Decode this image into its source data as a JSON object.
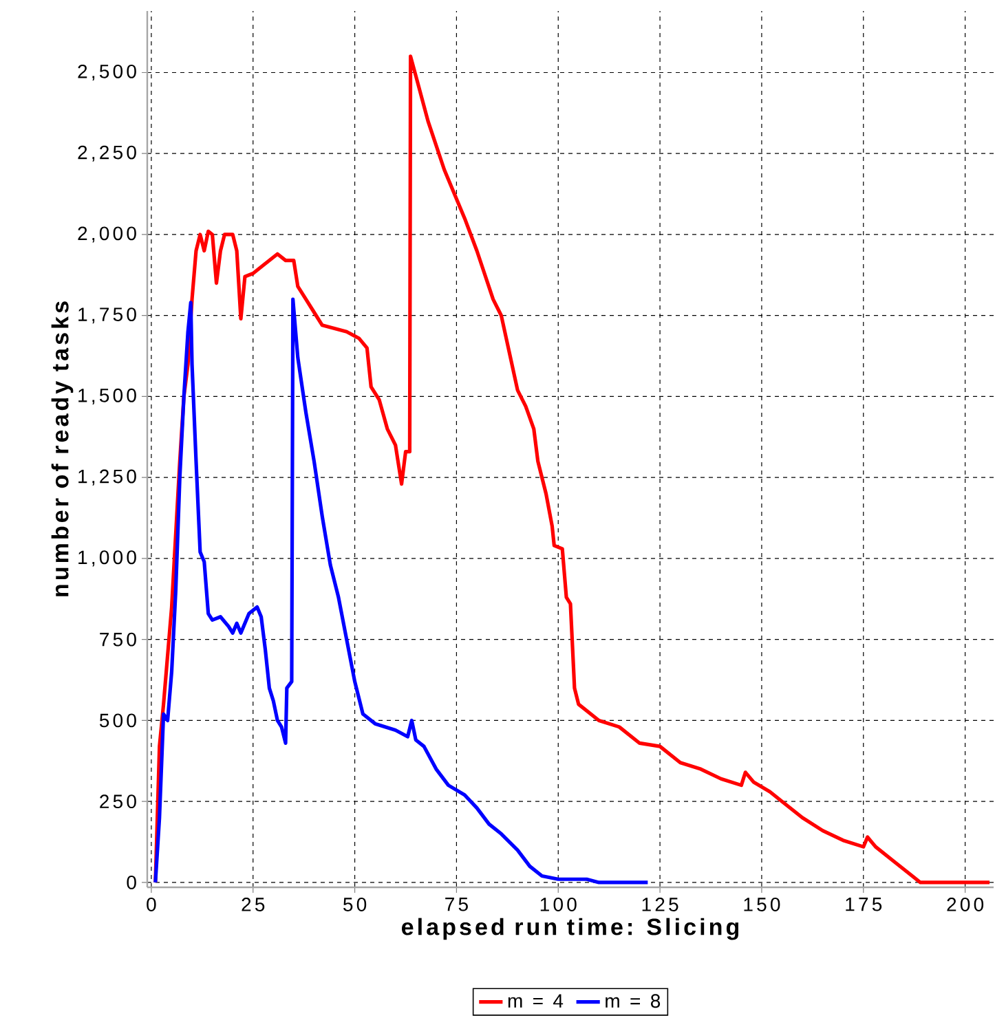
{
  "chart_data": {
    "type": "line",
    "xlabel": "elapsed run time: Slicing",
    "ylabel": "number of ready tasks",
    "xlim": [
      -1,
      207
    ],
    "ylim": [
      -15,
      2690
    ],
    "xticks": [
      0,
      25,
      50,
      75,
      100,
      125,
      150,
      175,
      200
    ],
    "yticks": [
      0,
      250,
      500,
      750,
      {
        "value": 1000,
        "label": "1,000"
      },
      {
        "value": 1250,
        "label": "1,250"
      },
      {
        "value": 1500,
        "label": "1,500"
      },
      {
        "value": 1750,
        "label": "1,750"
      },
      {
        "value": 2000,
        "label": "2,000"
      },
      {
        "value": 2250,
        "label": "2,250"
      },
      {
        "value": 2500,
        "label": "2,500"
      }
    ],
    "grid": true,
    "legend": "bottom",
    "line_style": "solid",
    "marker": "none",
    "series": [
      {
        "name": "m = 4",
        "color": "#ff0000",
        "x": [
          1,
          2,
          3,
          5,
          7,
          8,
          9,
          10,
          11,
          12,
          13,
          14,
          15,
          16,
          17,
          18,
          20,
          21,
          22,
          23,
          25,
          27,
          29,
          31,
          33,
          35,
          36,
          38,
          40,
          42,
          45,
          48,
          51,
          53,
          54,
          56,
          58,
          60,
          61.5,
          62.5,
          63.5,
          63.7,
          65,
          68,
          72,
          77,
          80,
          84,
          86,
          90,
          92,
          94,
          95,
          97,
          98.5,
          99,
          101,
          102,
          103,
          104,
          105,
          110,
          115,
          120,
          125,
          130,
          135,
          140,
          145,
          146,
          148,
          152,
          155,
          160,
          165,
          170,
          175,
          176,
          178,
          183,
          189,
          206
        ],
        "values": [
          0,
          420,
          550,
          850,
          1300,
          1500,
          1600,
          1800,
          1950,
          2000,
          1950,
          2010,
          2000,
          1850,
          1950,
          2000,
          2000,
          1950,
          1740,
          1870,
          1880,
          1900,
          1920,
          1940,
          1920,
          1920,
          1840,
          1800,
          1760,
          1720,
          1710,
          1700,
          1680,
          1650,
          1530,
          1490,
          1400,
          1350,
          1230,
          1330,
          1330,
          2550,
          2490,
          2350,
          2200,
          2050,
          1950,
          1800,
          1750,
          1520,
          1470,
          1400,
          1300,
          1200,
          1100,
          1040,
          1030,
          880,
          860,
          600,
          550,
          500,
          480,
          430,
          420,
          370,
          350,
          320,
          300,
          340,
          310,
          280,
          250,
          200,
          160,
          130,
          110,
          140,
          110,
          60,
          0,
          0
        ]
      },
      {
        "name": "m = 8",
        "color": "#0000ff",
        "x": [
          1,
          2,
          3,
          4,
          5,
          6,
          7,
          8,
          9,
          9.7,
          10,
          11,
          12,
          13,
          14,
          15,
          17,
          19,
          20,
          21,
          22,
          24,
          26,
          27,
          28,
          29,
          30,
          31,
          32,
          33,
          33.3,
          34.5,
          34.8,
          36,
          38,
          40,
          42,
          44,
          46,
          48,
          50,
          52,
          55,
          60,
          63,
          64,
          65,
          67,
          70,
          73,
          77,
          80,
          83,
          86,
          90,
          93,
          96,
          100,
          104,
          107,
          110,
          122
        ],
        "values": [
          0,
          200,
          520,
          500,
          650,
          900,
          1250,
          1500,
          1700,
          1790,
          1600,
          1300,
          1020,
          990,
          830,
          810,
          820,
          790,
          770,
          800,
          770,
          830,
          850,
          820,
          720,
          600,
          560,
          500,
          480,
          430,
          600,
          620,
          1800,
          1620,
          1450,
          1300,
          1130,
          980,
          880,
          750,
          620,
          520,
          490,
          470,
          450,
          500,
          440,
          420,
          350,
          300,
          270,
          230,
          180,
          150,
          100,
          50,
          20,
          10,
          10,
          10,
          0,
          0
        ]
      }
    ]
  }
}
